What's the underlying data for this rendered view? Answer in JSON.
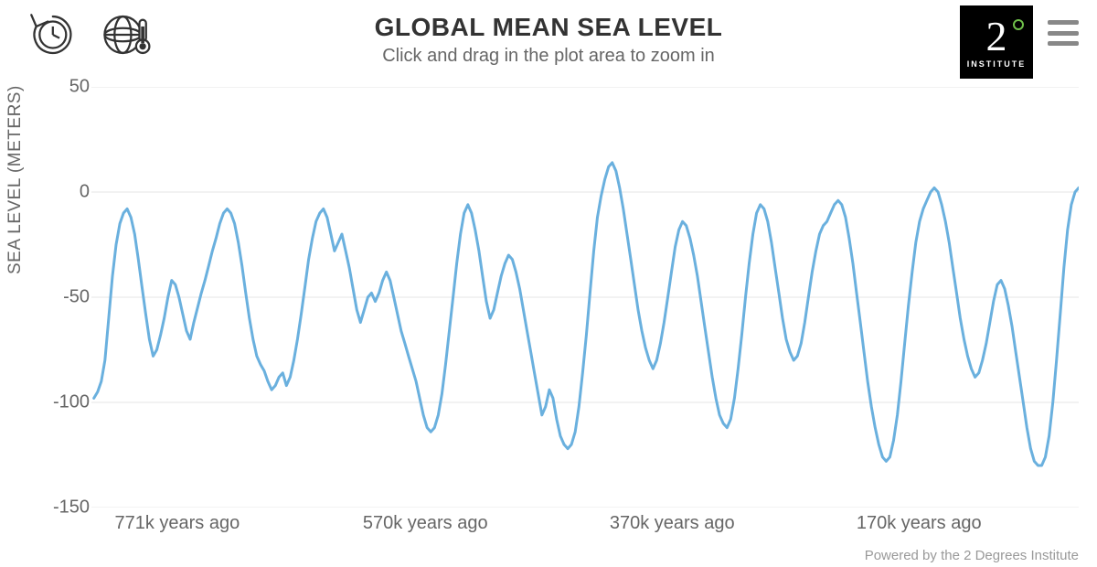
{
  "header": {
    "title": "GLOBAL MEAN SEA LEVEL",
    "subtitle": "Click and drag in the plot area to zoom in"
  },
  "logo": {
    "main": "2",
    "word": "INSTITUTE",
    "bg_color": "#000000",
    "accent_color": "#6fbf4a"
  },
  "credit": "Powered by the 2 Degrees Institute",
  "chart": {
    "type": "line",
    "ylabel": "SEA LEVEL (METERS)",
    "ylim": [
      -150,
      50
    ],
    "ytick_step": 50,
    "yticks": [
      50,
      0,
      -50,
      -100,
      -150
    ],
    "xlim_kyears_ago": [
      800,
      0
    ],
    "xticks": [
      {
        "value": 771,
        "label": "771k years ago"
      },
      {
        "value": 570,
        "label": "570k years ago"
      },
      {
        "value": 370,
        "label": "370k years ago"
      },
      {
        "value": 170,
        "label": "170k years ago"
      }
    ],
    "line_color": "#6ab0de",
    "line_width": 3,
    "grid_color": "#e6e6e6",
    "background_color": "#ffffff",
    "title_fontsize": 28,
    "subtitle_fontsize": 20,
    "label_fontsize": 19,
    "tick_fontsize": 20,
    "series": {
      "x_kyears_ago": [
        798,
        795,
        792,
        789,
        786,
        783,
        780,
        777,
        774,
        771,
        768,
        765,
        762,
        759,
        756,
        753,
        750,
        747,
        744,
        741,
        738,
        735,
        732,
        729,
        726,
        723,
        720,
        717,
        714,
        711,
        708,
        705,
        702,
        699,
        696,
        693,
        690,
        687,
        684,
        681,
        678,
        675,
        672,
        669,
        666,
        663,
        660,
        657,
        654,
        651,
        648,
        645,
        642,
        639,
        636,
        633,
        630,
        627,
        624,
        621,
        618,
        615,
        612,
        609,
        606,
        603,
        600,
        597,
        594,
        591,
        588,
        585,
        582,
        579,
        576,
        573,
        570,
        567,
        564,
        561,
        558,
        555,
        552,
        549,
        546,
        543,
        540,
        537,
        534,
        531,
        528,
        525,
        522,
        519,
        516,
        513,
        510,
        507,
        504,
        501,
        498,
        495,
        492,
        489,
        486,
        483,
        480,
        477,
        474,
        471,
        468,
        465,
        462,
        459,
        456,
        453,
        450,
        447,
        444,
        441,
        438,
        435,
        432,
        429,
        426,
        423,
        420,
        417,
        414,
        411,
        408,
        405,
        402,
        399,
        396,
        393,
        390,
        387,
        384,
        381,
        378,
        375,
        372,
        369,
        366,
        363,
        360,
        357,
        354,
        351,
        348,
        345,
        342,
        339,
        336,
        333,
        330,
        327,
        324,
        321,
        318,
        315,
        312,
        309,
        306,
        303,
        300,
        297,
        294,
        291,
        288,
        285,
        282,
        279,
        276,
        273,
        270,
        267,
        264,
        261,
        258,
        255,
        252,
        249,
        246,
        243,
        240,
        237,
        234,
        231,
        228,
        225,
        222,
        219,
        216,
        213,
        210,
        207,
        204,
        201,
        198,
        195,
        192,
        189,
        186,
        183,
        180,
        177,
        174,
        171,
        168,
        165,
        162,
        159,
        156,
        153,
        150,
        147,
        144,
        141,
        138,
        135,
        132,
        129,
        126,
        123,
        120,
        117,
        114,
        111,
        108,
        105,
        102,
        99,
        96,
        93,
        90,
        87,
        84,
        81,
        78,
        75,
        72,
        69,
        66,
        63,
        60,
        57,
        54,
        51,
        48,
        45,
        42,
        39,
        36,
        33,
        30,
        27,
        24,
        21,
        18,
        15,
        12,
        9,
        6,
        3,
        0
      ],
      "y_meters": [
        -98,
        -95,
        -90,
        -80,
        -60,
        -40,
        -25,
        -15,
        -10,
        -8,
        -12,
        -20,
        -32,
        -45,
        -58,
        -70,
        -78,
        -75,
        -68,
        -60,
        -50,
        -42,
        -44,
        -50,
        -58,
        -66,
        -70,
        -62,
        -55,
        -48,
        -42,
        -35,
        -28,
        -22,
        -15,
        -10,
        -8,
        -10,
        -15,
        -24,
        -35,
        -48,
        -60,
        -70,
        -78,
        -82,
        -85,
        -90,
        -94,
        -92,
        -88,
        -86,
        -92,
        -88,
        -80,
        -70,
        -58,
        -45,
        -32,
        -22,
        -14,
        -10,
        -8,
        -12,
        -20,
        -28,
        -24,
        -20,
        -28,
        -36,
        -46,
        -56,
        -62,
        -56,
        -50,
        -48,
        -52,
        -48,
        -42,
        -38,
        -42,
        -50,
        -58,
        -66,
        -72,
        -78,
        -84,
        -90,
        -98,
        -106,
        -112,
        -114,
        -112,
        -106,
        -96,
        -82,
        -66,
        -50,
        -34,
        -20,
        -10,
        -6,
        -10,
        -18,
        -28,
        -40,
        -52,
        -60,
        -56,
        -48,
        -40,
        -34,
        -30,
        -32,
        -38,
        -46,
        -56,
        -66,
        -76,
        -86,
        -96,
        -106,
        -102,
        -94,
        -98,
        -108,
        -116,
        -120,
        -122,
        -120,
        -114,
        -102,
        -86,
        -68,
        -48,
        -28,
        -12,
        -2,
        6,
        12,
        14,
        10,
        2,
        -8,
        -20,
        -32,
        -44,
        -56,
        -66,
        -74,
        -80,
        -84,
        -80,
        -72,
        -62,
        -50,
        -38,
        -26,
        -18,
        -14,
        -16,
        -22,
        -30,
        -40,
        -52,
        -64,
        -76,
        -88,
        -98,
        -106,
        -110,
        -112,
        -108,
        -98,
        -84,
        -68,
        -50,
        -34,
        -20,
        -10,
        -6,
        -8,
        -14,
        -24,
        -36,
        -48,
        -60,
        -70,
        -76,
        -80,
        -78,
        -72,
        -62,
        -50,
        -38,
        -28,
        -20,
        -16,
        -14,
        -10,
        -6,
        -4,
        -6,
        -12,
        -22,
        -34,
        -48,
        -62,
        -76,
        -90,
        -102,
        -112,
        -120,
        -126,
        -128,
        -126,
        -118,
        -106,
        -90,
        -72,
        -54,
        -38,
        -24,
        -14,
        -8,
        -4,
        0,
        2,
        0,
        -6,
        -14,
        -24,
        -36,
        -48,
        -60,
        -70,
        -78,
        -84,
        -88,
        -86,
        -80,
        -72,
        -62,
        -52,
        -44,
        -42,
        -46,
        -54,
        -64,
        -76,
        -88,
        -100,
        -112,
        -122,
        -128,
        -130,
        -130,
        -126,
        -116,
        -100,
        -80,
        -58,
        -36,
        -18,
        -6,
        0,
        2
      ]
    }
  }
}
